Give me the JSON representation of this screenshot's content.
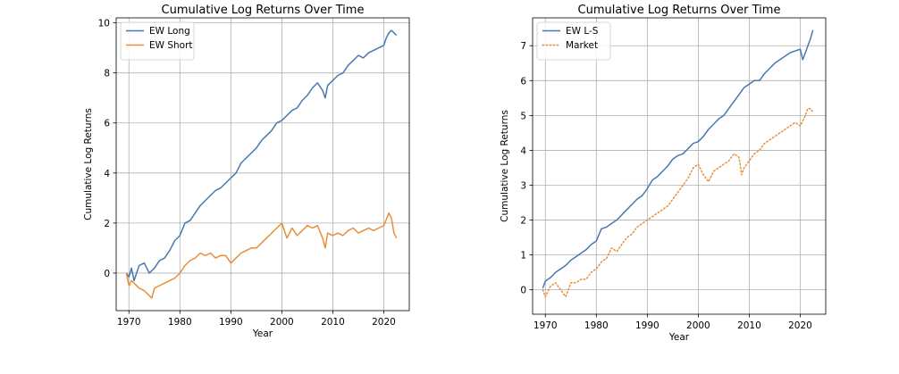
{
  "chart_data": [
    {
      "type": "line",
      "title": "Cumulative Log Returns Over Time",
      "xlabel": "Year",
      "ylabel": "Cumulative Log Returns",
      "xlim": [
        1967.5,
        2025
      ],
      "ylim": [
        -1.5,
        10.2
      ],
      "xticks": [
        "1970",
        "1980",
        "1990",
        "2000",
        "2010",
        "2020"
      ],
      "yticks": [
        "0",
        "2",
        "4",
        "6",
        "8",
        "10"
      ],
      "grid": true,
      "legend": "top-left",
      "series": [
        {
          "name": "EW Long",
          "color": "#4878b0",
          "style": "solid",
          "x": [
            1969.5,
            1970,
            1970.5,
            1971,
            1972,
            1973,
            1974,
            1974.5,
            1975,
            1976,
            1977,
            1978,
            1979,
            1980,
            1981,
            1982,
            1983,
            1984,
            1985,
            1986,
            1987,
            1988,
            1989,
            1990,
            1991,
            1992,
            1993,
            1994,
            1995,
            1996,
            1997,
            1998,
            1999,
            2000,
            2001,
            2002,
            2003,
            2004,
            2005,
            2006,
            2007,
            2008,
            2008.5,
            2009,
            2010,
            2011,
            2012,
            2013,
            2014,
            2015,
            2016,
            2017,
            2018,
            2019,
            2020,
            2020.5,
            2021,
            2021.5,
            2022,
            2022.5
          ],
          "y": [
            0.0,
            -0.15,
            0.2,
            -0.3,
            0.3,
            0.4,
            0.0,
            0.1,
            0.2,
            0.5,
            0.6,
            0.9,
            1.3,
            1.5,
            2.0,
            2.1,
            2.4,
            2.7,
            2.9,
            3.1,
            3.3,
            3.4,
            3.6,
            3.8,
            4.0,
            4.4,
            4.6,
            4.8,
            5.0,
            5.3,
            5.5,
            5.7,
            6.0,
            6.1,
            6.3,
            6.5,
            6.6,
            6.9,
            7.1,
            7.4,
            7.6,
            7.3,
            7.0,
            7.5,
            7.7,
            7.9,
            8.0,
            8.3,
            8.5,
            8.7,
            8.6,
            8.8,
            8.9,
            9.0,
            9.1,
            9.4,
            9.6,
            9.7,
            9.6,
            9.5
          ]
        },
        {
          "name": "EW Short",
          "color": "#e98e36",
          "style": "solid",
          "x": [
            1969.5,
            1970,
            1970.5,
            1971,
            1972,
            1973,
            1974,
            1974.5,
            1975,
            1976,
            1977,
            1978,
            1979,
            1980,
            1981,
            1982,
            1983,
            1984,
            1985,
            1986,
            1987,
            1988,
            1989,
            1990,
            1991,
            1992,
            1993,
            1994,
            1995,
            1996,
            1997,
            1998,
            1999,
            2000,
            2000.5,
            2001,
            2002,
            2003,
            2004,
            2005,
            2006,
            2007,
            2008,
            2008.5,
            2009,
            2010,
            2011,
            2012,
            2013,
            2014,
            2015,
            2016,
            2017,
            2018,
            2019,
            2020,
            2021,
            2021.5,
            2022,
            2022.5
          ],
          "y": [
            0.0,
            -0.5,
            -0.3,
            -0.4,
            -0.6,
            -0.7,
            -0.9,
            -1.0,
            -0.6,
            -0.5,
            -0.4,
            -0.3,
            -0.2,
            0.0,
            0.3,
            0.5,
            0.6,
            0.8,
            0.7,
            0.8,
            0.6,
            0.7,
            0.7,
            0.4,
            0.6,
            0.8,
            0.9,
            1.0,
            1.0,
            1.2,
            1.4,
            1.6,
            1.8,
            2.0,
            1.7,
            1.4,
            1.8,
            1.5,
            1.7,
            1.9,
            1.8,
            1.9,
            1.4,
            1.0,
            1.6,
            1.5,
            1.6,
            1.5,
            1.7,
            1.8,
            1.6,
            1.7,
            1.8,
            1.7,
            1.8,
            1.9,
            2.4,
            2.2,
            1.6,
            1.4
          ]
        }
      ]
    },
    {
      "type": "line",
      "title": "Cumulative Log Returns Over Time",
      "xlabel": "Year",
      "ylabel": "Cumulative Log Returns",
      "xlim": [
        1967.5,
        2025
      ],
      "ylim": [
        -0.7,
        7.8
      ],
      "xticks": [
        "1970",
        "1980",
        "1990",
        "2000",
        "2010",
        "2020"
      ],
      "yticks": [
        "0",
        "1",
        "2",
        "3",
        "4",
        "5",
        "6",
        "7"
      ],
      "grid": true,
      "legend": "top-left",
      "series": [
        {
          "name": "EW L-S",
          "color": "#4878b0",
          "style": "solid",
          "x": [
            1969.5,
            1970,
            1971,
            1972,
            1973,
            1974,
            1975,
            1976,
            1977,
            1978,
            1979,
            1980,
            1981,
            1982,
            1983,
            1984,
            1985,
            1986,
            1987,
            1988,
            1989,
            1990,
            1991,
            1992,
            1993,
            1994,
            1995,
            1996,
            1997,
            1998,
            1999,
            2000,
            2001,
            2002,
            2003,
            2004,
            2005,
            2006,
            2007,
            2008,
            2009,
            2010,
            2011,
            2012,
            2013,
            2014,
            2015,
            2016,
            2017,
            2018,
            2019,
            2020,
            2020.5,
            2021,
            2021.5,
            2022,
            2022.5
          ],
          "y": [
            0.05,
            0.25,
            0.35,
            0.5,
            0.6,
            0.7,
            0.85,
            0.95,
            1.05,
            1.15,
            1.3,
            1.4,
            1.75,
            1.8,
            1.9,
            2.0,
            2.15,
            2.3,
            2.45,
            2.6,
            2.7,
            2.9,
            3.15,
            3.25,
            3.4,
            3.55,
            3.75,
            3.85,
            3.9,
            4.05,
            4.2,
            4.25,
            4.4,
            4.6,
            4.75,
            4.9,
            5.0,
            5.2,
            5.4,
            5.6,
            5.8,
            5.9,
            6.0,
            6.0,
            6.2,
            6.35,
            6.5,
            6.6,
            6.7,
            6.8,
            6.85,
            6.9,
            6.6,
            6.8,
            7.0,
            7.2,
            7.45
          ]
        },
        {
          "name": "Market",
          "color": "#e98e36",
          "style": "dotted",
          "x": [
            1969.5,
            1970,
            1971,
            1972,
            1973,
            1974,
            1975,
            1976,
            1977,
            1978,
            1979,
            1980,
            1981,
            1982,
            1983,
            1984,
            1985,
            1986,
            1987,
            1988,
            1989,
            1990,
            1991,
            1992,
            1993,
            1994,
            1995,
            1996,
            1997,
            1998,
            1999,
            2000,
            2001,
            2002,
            2003,
            2004,
            2005,
            2006,
            2007,
            2008,
            2008.5,
            2009,
            2010,
            2011,
            2012,
            2013,
            2014,
            2015,
            2016,
            2017,
            2018,
            2019,
            2020,
            2021,
            2021.5,
            2022,
            2022.5
          ],
          "y": [
            0.0,
            -0.2,
            0.1,
            0.2,
            0.0,
            -0.2,
            0.2,
            0.2,
            0.3,
            0.3,
            0.5,
            0.6,
            0.8,
            0.9,
            1.2,
            1.1,
            1.3,
            1.5,
            1.6,
            1.8,
            1.9,
            2.0,
            2.1,
            2.2,
            2.3,
            2.4,
            2.6,
            2.8,
            3.0,
            3.2,
            3.5,
            3.6,
            3.3,
            3.1,
            3.4,
            3.5,
            3.6,
            3.7,
            3.9,
            3.8,
            3.3,
            3.5,
            3.7,
            3.9,
            4.0,
            4.2,
            4.3,
            4.4,
            4.5,
            4.6,
            4.7,
            4.8,
            4.7,
            5.0,
            5.2,
            5.2,
            5.1
          ]
        }
      ]
    }
  ]
}
